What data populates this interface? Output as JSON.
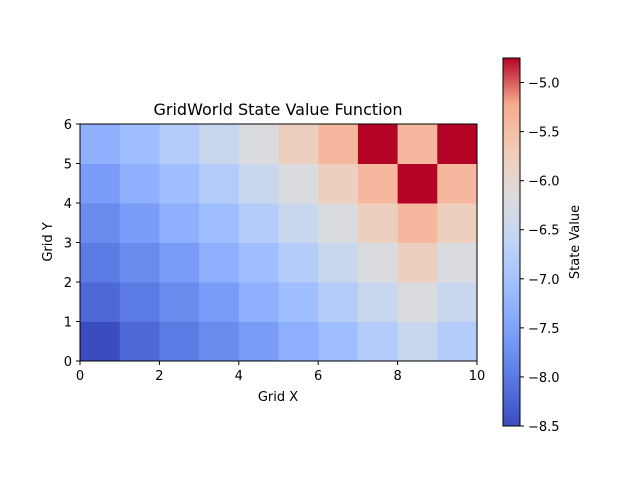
{
  "chart_data": {
    "type": "heatmap",
    "title": "GridWorld State Value Function",
    "xlabel": "Grid X",
    "ylabel": "Grid Y",
    "xlim": [
      0,
      10
    ],
    "ylim": [
      0,
      6
    ],
    "x_ticks": [
      0,
      2,
      4,
      6,
      8,
      10
    ],
    "y_ticks": [
      0,
      1,
      2,
      3,
      4,
      5,
      6
    ],
    "colorbar": {
      "label": "State Value",
      "range": [
        -8.5,
        -4.75
      ],
      "ticks": [
        -8.5,
        -8.0,
        -7.5,
        -7.0,
        -6.5,
        -6.0,
        -5.5,
        -5.0
      ],
      "tick_labels": [
        "−8.5",
        "−8.0",
        "−7.5",
        "−7.0",
        "−6.5",
        "−6.0",
        "−5.5",
        "−5.0"
      ],
      "colormap": "coolwarm"
    },
    "grid": false,
    "rows_bottom_to_top": [
      [
        -8.5,
        -8.2,
        -8.0,
        -7.8,
        -7.6,
        -7.3,
        -7.1,
        -6.8,
        -6.5,
        -6.8
      ],
      [
        -8.2,
        -8.0,
        -7.8,
        -7.6,
        -7.3,
        -7.1,
        -6.8,
        -6.5,
        -6.2,
        -6.5
      ],
      [
        -8.0,
        -7.8,
        -7.6,
        -7.3,
        -7.1,
        -6.8,
        -6.5,
        -6.2,
        -5.8,
        -6.2
      ],
      [
        -7.8,
        -7.6,
        -7.3,
        -7.1,
        -6.8,
        -6.5,
        -6.2,
        -5.8,
        -5.4,
        -5.8
      ],
      [
        -7.6,
        -7.3,
        -7.1,
        -6.8,
        -6.5,
        -6.2,
        -5.8,
        -5.4,
        -4.75,
        -5.4
      ],
      [
        -7.3,
        -7.1,
        -6.8,
        -6.5,
        -6.2,
        -5.8,
        -5.4,
        -4.75,
        -5.4,
        -4.75
      ]
    ]
  }
}
